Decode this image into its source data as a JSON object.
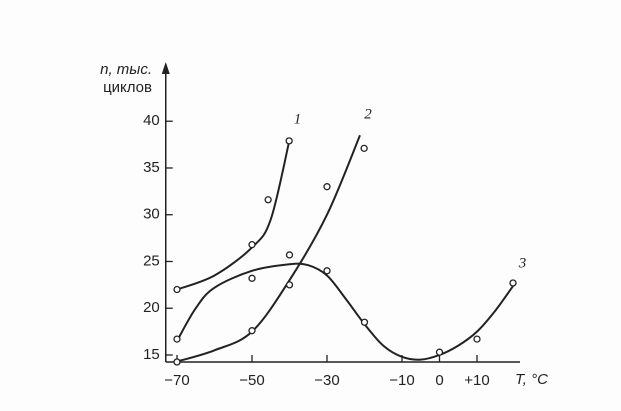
{
  "chart_data": {
    "type": "line",
    "y_label_line1": "n, тыс.",
    "y_label_line2": "циклов",
    "x_label": "T, °C",
    "xlim": [
      -73,
      21
    ],
    "ylim": [
      14.25,
      45.5
    ],
    "xticks": [
      {
        "value": -70,
        "label": "−70"
      },
      {
        "value": -50,
        "label": "−50"
      },
      {
        "value": -30,
        "label": "−30"
      },
      {
        "value": -10,
        "label": "−10"
      },
      0,
      {
        "value": 10,
        "label": "+10"
      }
    ],
    "yticks": [
      15,
      20,
      25,
      30,
      35,
      40
    ],
    "color": "#222222",
    "series": [
      {
        "name": "1",
        "x": [
          -70,
          -50,
          -45.7,
          -40.1
        ],
        "values": [
          22,
          26.8,
          31.6,
          37.9
        ],
        "curve_x": [
          -70,
          -60,
          -50,
          -45,
          -40
        ],
        "curve_y": [
          22,
          23.5,
          26.5,
          29.5,
          38
        ]
      },
      {
        "name": "2",
        "x": [
          -70,
          -50,
          -40,
          -30,
          -20.1
        ],
        "values": [
          14.25,
          17.6,
          22.5,
          33,
          37.1
        ],
        "curve_x": [
          -70,
          -60,
          -50,
          -40,
          -30,
          -21.2
        ],
        "curve_y": [
          14.3,
          15.5,
          17.5,
          23,
          30,
          38.5
        ]
      },
      {
        "name": "3",
        "x": [
          -70,
          -50,
          -40,
          -30,
          -20,
          0,
          10,
          19.6
        ],
        "values": [
          16.7,
          23.2,
          25.7,
          24,
          18.5,
          15.3,
          16.7,
          22.7
        ],
        "curve_x": [
          -70,
          -65,
          -60,
          -50,
          -40,
          -35,
          -30,
          -25,
          -20,
          -15,
          -10,
          -5,
          0,
          5,
          10,
          15,
          20
        ],
        "curve_y": [
          16.5,
          20,
          22.2,
          24,
          24.7,
          24.6,
          23.5,
          21,
          18.3,
          16,
          14.8,
          14.5,
          15,
          16,
          17.5,
          19.8,
          22.6
        ]
      }
    ]
  }
}
